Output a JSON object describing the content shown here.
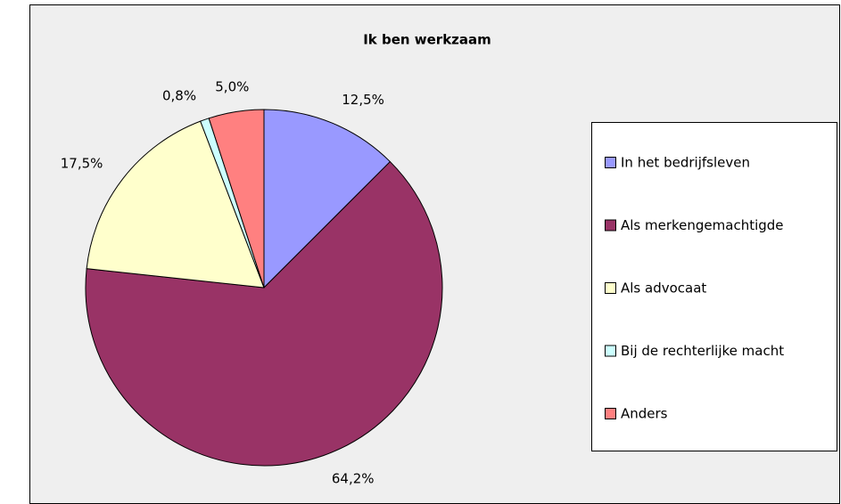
{
  "chart_data": {
    "type": "pie",
    "title": "Ik ben werkzaam",
    "categories": [
      "In het bedrijfsleven",
      "Als merkengemachtigde",
      "Als advocaat",
      "Bij de rechterlijke macht",
      "Anders"
    ],
    "values": [
      12.5,
      64.2,
      17.5,
      0.8,
      5.0
    ],
    "value_labels": [
      "12,5%",
      "64,2%",
      "17,5%",
      "0,8%",
      "5,0%"
    ],
    "colors": [
      "#9999ff",
      "#993366",
      "#ffffcc",
      "#ccffff",
      "#ff8080"
    ],
    "legend": "right"
  }
}
